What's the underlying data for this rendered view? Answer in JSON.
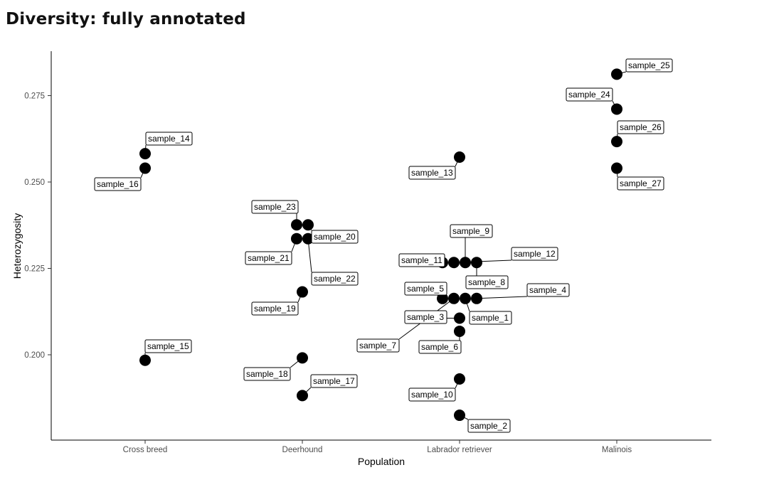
{
  "title": "Diversity: fully annotated",
  "chart_data": {
    "type": "scatter",
    "title": "Diversity: fully annotated",
    "xlabel": "Population",
    "ylabel": "Heterozygosity",
    "categories": [
      "Cross breed",
      "Deerhound",
      "Labrador retriever",
      "Malinois"
    ],
    "ylim": [
      0.1825,
      0.2805
    ],
    "yticks": [
      0.2,
      0.225,
      0.25,
      0.275
    ],
    "ytick_labels": [
      "0.200",
      "0.225",
      "0.250",
      "0.275"
    ],
    "grid": false,
    "point_color": "#000000",
    "points": [
      {
        "label": "sample_1",
        "category": "Labrador retriever",
        "y": 0.2163
      },
      {
        "label": "sample_2",
        "category": "Labrador retriever",
        "y": 0.1825
      },
      {
        "label": "sample_3",
        "category": "Labrador retriever",
        "y": 0.2106
      },
      {
        "label": "sample_4",
        "category": "Labrador retriever",
        "y": 0.2163
      },
      {
        "label": "sample_5",
        "category": "Labrador retriever",
        "y": 0.2163
      },
      {
        "label": "sample_6",
        "category": "Labrador retriever",
        "y": 0.2068
      },
      {
        "label": "sample_7",
        "category": "Labrador retriever",
        "y": 0.2163
      },
      {
        "label": "sample_8",
        "category": "Labrador retriever",
        "y": 0.2267
      },
      {
        "label": "sample_9",
        "category": "Labrador retriever",
        "y": 0.2267
      },
      {
        "label": "sample_10",
        "category": "Labrador retriever",
        "y": 0.193
      },
      {
        "label": "sample_11",
        "category": "Labrador retriever",
        "y": 0.2267
      },
      {
        "label": "sample_12",
        "category": "Labrador retriever",
        "y": 0.2267
      },
      {
        "label": "sample_13",
        "category": "Labrador retriever",
        "y": 0.2572
      },
      {
        "label": "sample_14",
        "category": "Cross breed",
        "y": 0.2582
      },
      {
        "label": "sample_15",
        "category": "Cross breed",
        "y": 0.1984
      },
      {
        "label": "sample_16",
        "category": "Cross breed",
        "y": 0.254
      },
      {
        "label": "sample_17",
        "category": "Deerhound",
        "y": 0.1882
      },
      {
        "label": "sample_18",
        "category": "Deerhound",
        "y": 0.1991
      },
      {
        "label": "sample_19",
        "category": "Deerhound",
        "y": 0.2182
      },
      {
        "label": "sample_20",
        "category": "Deerhound",
        "y": 0.2376
      },
      {
        "label": "sample_21",
        "category": "Deerhound",
        "y": 0.2336
      },
      {
        "label": "sample_22",
        "category": "Deerhound",
        "y": 0.2336
      },
      {
        "label": "sample_23",
        "category": "Deerhound",
        "y": 0.2376
      },
      {
        "label": "sample_24",
        "category": "Malinois",
        "y": 0.2711
      },
      {
        "label": "sample_25",
        "category": "Malinois",
        "y": 0.2812
      },
      {
        "label": "sample_26",
        "category": "Malinois",
        "y": 0.2617
      },
      {
        "label": "sample_27",
        "category": "Malinois",
        "y": 0.254
      }
    ]
  }
}
